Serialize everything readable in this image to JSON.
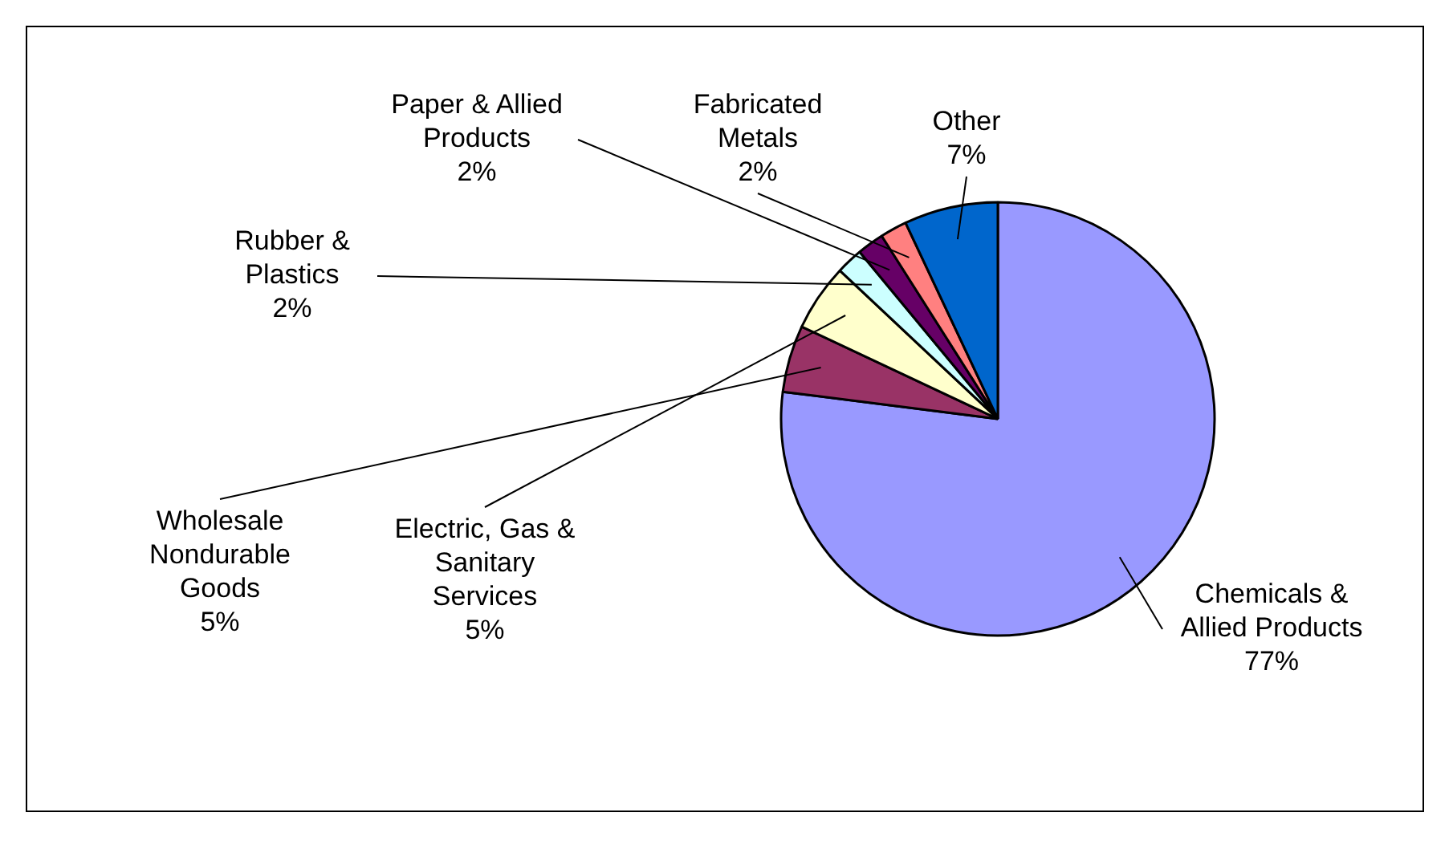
{
  "chart_data": {
    "type": "pie",
    "categories": [
      "Chemicals & Allied Products",
      "Wholesale Nondurable Goods",
      "Electric, Gas & Sanitary Services",
      "Rubber & Plastics",
      "Paper & Allied Products",
      "Fabricated Metals",
      "Other"
    ],
    "values": [
      77,
      5,
      5,
      2,
      2,
      2,
      7
    ],
    "value_labels": [
      "77%",
      "5%",
      "5%",
      "2%",
      "2%",
      "2%",
      "7%"
    ],
    "colors": [
      "#9999ff",
      "#993366",
      "#ffffcc",
      "#ccffff",
      "#660066",
      "#ff8080",
      "#0066cc"
    ],
    "legend": false
  }
}
